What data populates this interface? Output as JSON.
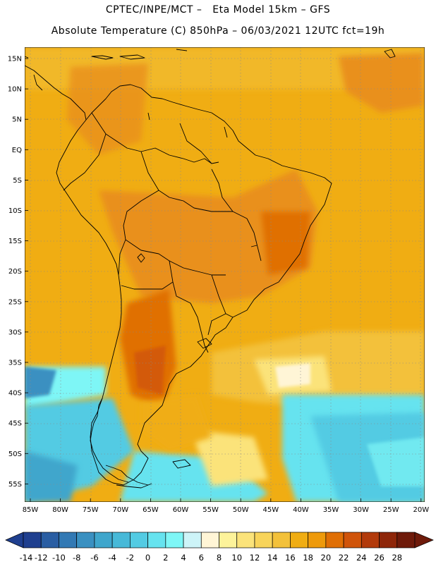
{
  "header": {
    "title_line1": "CPTEC/INPE/MCT –   Eta Model 15km – GFS",
    "title_line2": "Absolute Temperature (C) 850hPa – 06/03/2021 12UTC fct=19h"
  },
  "map": {
    "lon_labels": [
      "85W",
      "80W",
      "75W",
      "70W",
      "65W",
      "60W",
      "55W",
      "50W",
      "45W",
      "40W",
      "35W",
      "30W",
      "25W",
      "20W"
    ],
    "lat_labels": [
      "15N",
      "10N",
      "5N",
      "EQ",
      "5S",
      "10S",
      "15S",
      "20S",
      "25S",
      "30S",
      "35S",
      "40S",
      "45S",
      "50S",
      "55S"
    ],
    "colorbar": {
      "labels": [
        "-14",
        "-12",
        "-10",
        "-8",
        "-6",
        "-4",
        "-2",
        "0",
        "2",
        "4",
        "6",
        "8",
        "10",
        "12",
        "14",
        "16",
        "18",
        "20",
        "22",
        "24",
        "26",
        "28"
      ],
      "colors": [
        "#1f3f8f",
        "#2a5ea3",
        "#3279b4",
        "#3a90c1",
        "#3fa6cc",
        "#47b9d8",
        "#53cbe3",
        "#66e3ef",
        "#7ef6f6",
        "#cdf4f8",
        "#fff5d6",
        "#fdf39a",
        "#fbe37a",
        "#f8d45a",
        "#f3c13a",
        "#f0ad13",
        "#ee9a0b",
        "#e06f05",
        "#d0540a",
        "#b23a0b",
        "#8e2609",
        "#6e1a0a"
      ],
      "min": -14,
      "max": 28,
      "step": 2
    }
  }
}
